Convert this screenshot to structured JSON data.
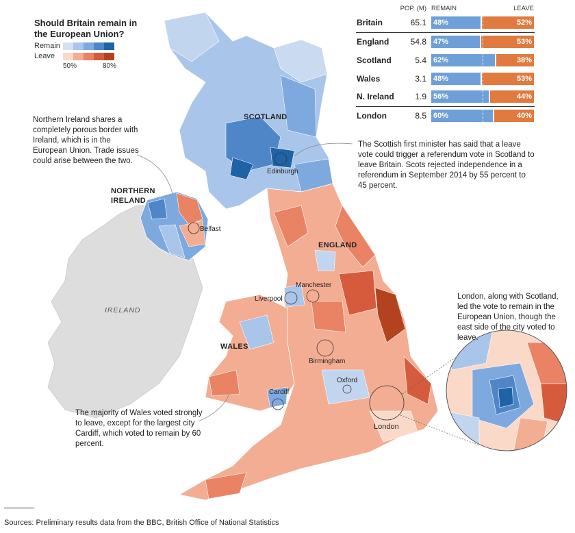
{
  "title": "Should Britain remain in the European Union?",
  "legend": {
    "remain_label": "Remain",
    "leave_label": "Leave",
    "min_label": "50%",
    "max_label": "80%",
    "remain_colors": [
      "#d3e1f4",
      "#a9c5ea",
      "#7ea9de",
      "#4f86c8",
      "#1f63a6"
    ],
    "leave_colors": [
      "#fbd9c9",
      "#f3ad92",
      "#e98364",
      "#d65b3d",
      "#b3431f"
    ]
  },
  "table": {
    "headers": {
      "pop": "POP. (M)",
      "remain": "REMAIN",
      "leave": "LEAVE"
    },
    "rows": [
      {
        "name": "Britain",
        "pop": "65.1",
        "remain": "48%",
        "leave": "52%",
        "remain_pct": 48
      },
      {
        "name": "England",
        "pop": "54.8",
        "remain": "47%",
        "leave": "53%",
        "remain_pct": 47
      },
      {
        "name": "Scotland",
        "pop": "5.4",
        "remain": "62%",
        "leave": "38%",
        "remain_pct": 62
      },
      {
        "name": "Wales",
        "pop": "3.1",
        "remain": "48%",
        "leave": "53%",
        "remain_pct": 48
      },
      {
        "name": "N. Ireland",
        "pop": "1.9",
        "remain": "56%",
        "leave": "44%",
        "remain_pct": 56
      },
      {
        "name": "London",
        "pop": "8.5",
        "remain": "60%",
        "leave": "40%",
        "remain_pct": 60
      }
    ]
  },
  "regions": {
    "scotland": "SCOTLAND",
    "northern_ireland_1": "NORTHERN",
    "northern_ireland_2": "IRELAND",
    "england": "ENGLAND",
    "wales": "WALES",
    "ireland": "IRELAND"
  },
  "cities": {
    "edinburgh": "Edinburgh",
    "belfast": "Belfast",
    "manchester": "Manchester",
    "liverpool": "Liverpool",
    "birmingham": "Birmingham",
    "oxford": "Oxford",
    "cardiff": "Cardiff",
    "london": "London"
  },
  "annotations": {
    "ni": "Northern Ireland shares a completely porous border with Ireland, which is in the European Union. Trade issues could arise between the two.",
    "scotland": "The Scottish first minister has said that a leave vote could trigger a referendum vote in Scotland to leave Britain. Scots rejected independence in a referendum in September 2014 by 55 percent to 45 percent.",
    "london": "London, along with Scotland, led the vote to remain in the European Union, though the east side of the city voted to leave.",
    "wales": "The majority of Wales voted strongly to leave, except for the largest city Cardiff, which voted to remain by 60 percent."
  },
  "sources": "Sources: Preliminary results data from the BBC, British Office of National Statistics"
}
